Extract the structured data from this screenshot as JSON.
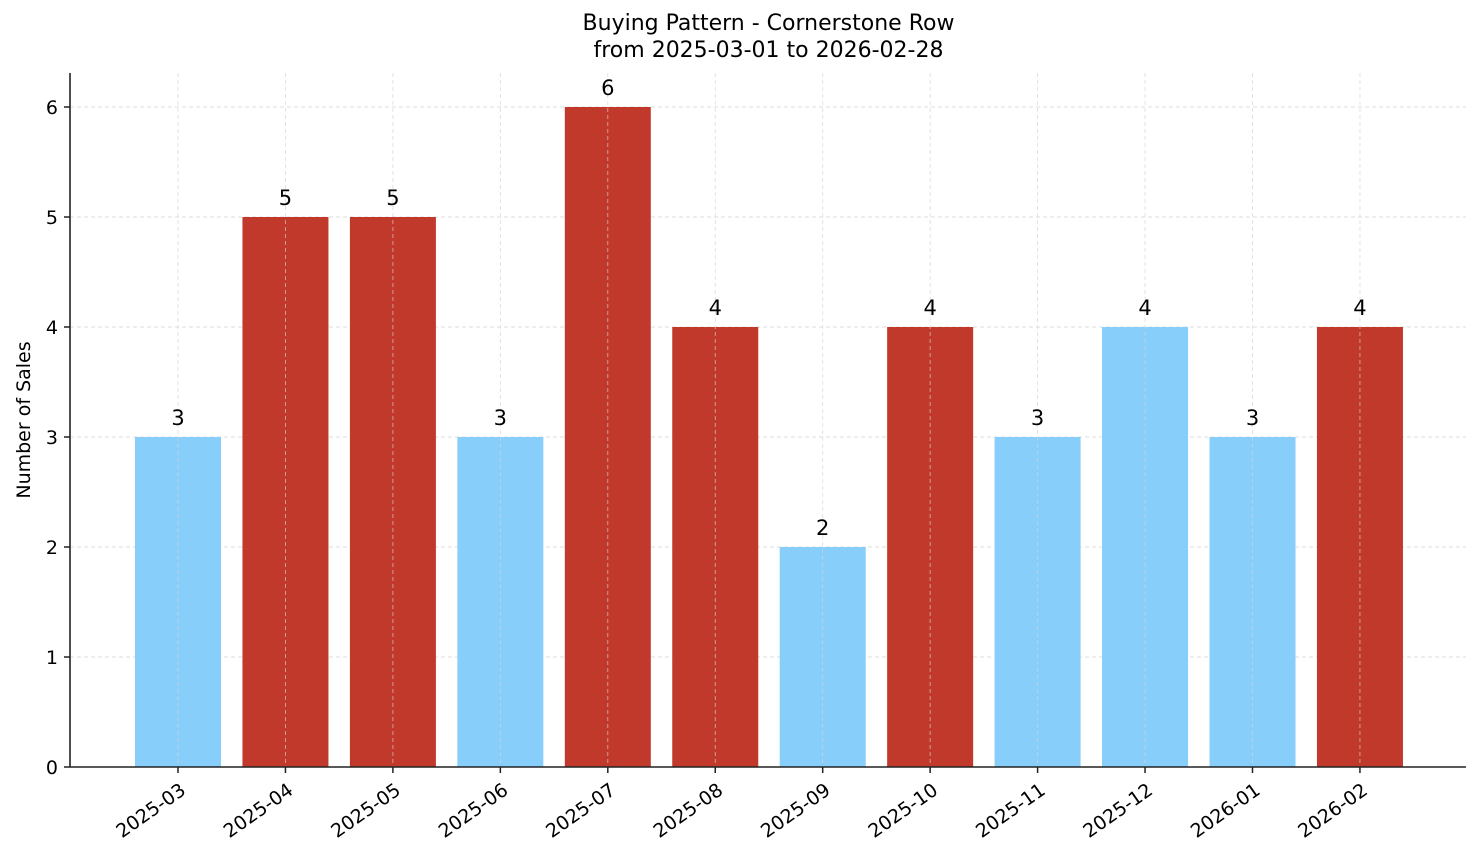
{
  "chart_data": {
    "type": "bar",
    "title": "Buying Pattern - Cornerstone Row",
    "subtitle": "from 2025-03-01 to 2026-02-28",
    "xlabel": "",
    "ylabel": "Number of Sales",
    "categories": [
      "2025-03",
      "2025-04",
      "2025-05",
      "2025-06",
      "2025-07",
      "2025-08",
      "2025-09",
      "2025-10",
      "2025-11",
      "2025-12",
      "2026-01",
      "2026-02"
    ],
    "values": [
      3,
      5,
      5,
      3,
      6,
      4,
      2,
      4,
      3,
      4,
      3,
      4
    ],
    "bar_colors": [
      "#87CEFA",
      "#C0392B",
      "#C0392B",
      "#87CEFA",
      "#C0392B",
      "#C0392B",
      "#87CEFA",
      "#C0392B",
      "#87CEFA",
      "#87CEFA",
      "#87CEFA",
      "#C0392B"
    ],
    "ylim": [
      0,
      6.3
    ],
    "yticks": [
      0,
      1,
      2,
      3,
      4,
      5,
      6
    ],
    "grid": true,
    "data_labels": true,
    "legend": null
  },
  "colors": {
    "high": "#C0392B",
    "low": "#87CEFA",
    "grid": "#d3d3d3",
    "axis": "#222222"
  }
}
